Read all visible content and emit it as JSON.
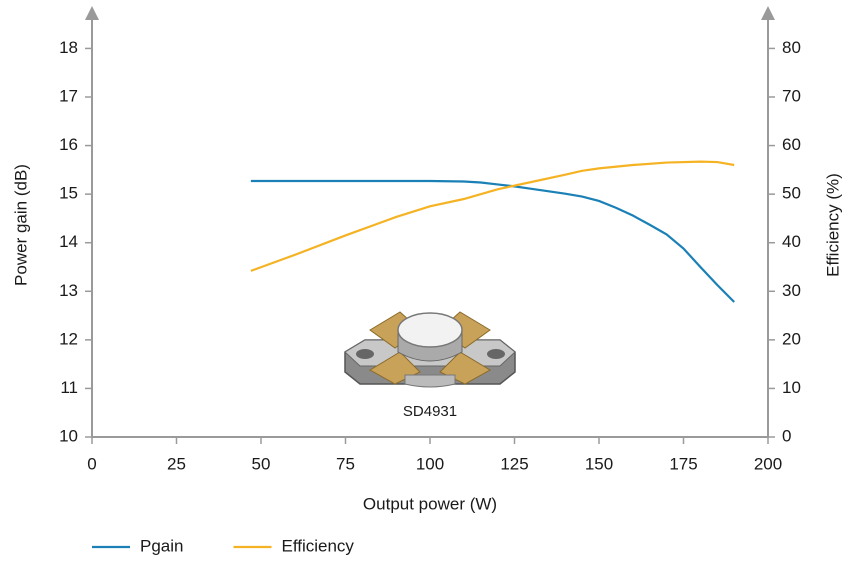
{
  "chart_data": {
    "type": "line",
    "x_label": "Output power (W)",
    "y_label": "Power gain (dB)",
    "y2_label": "Efficiency (%)",
    "image_label": "SD4931",
    "xlim": [
      0,
      200
    ],
    "xticks": [
      0,
      25,
      50,
      75,
      100,
      125,
      150,
      175,
      200
    ],
    "ylim": [
      10,
      18.75
    ],
    "yticks": [
      10,
      11,
      12,
      13,
      14,
      15,
      16,
      17,
      18
    ],
    "y2lim": [
      0,
      87.5
    ],
    "y2ticks": [
      0,
      10,
      20,
      30,
      40,
      50,
      60,
      70,
      80
    ],
    "legend": "bottom-left",
    "series": [
      {
        "name": "Pgain",
        "color": "#1a80b6",
        "x": [
          47,
          60,
          75,
          90,
          100,
          110,
          115,
          120,
          125,
          130,
          140,
          145,
          150,
          155,
          160,
          165,
          170,
          175,
          180,
          185,
          190
        ],
        "values": [
          15.27,
          15.27,
          15.27,
          15.27,
          15.27,
          15.26,
          15.24,
          15.2,
          15.16,
          15.11,
          15.01,
          14.95,
          14.86,
          14.72,
          14.56,
          14.37,
          14.17,
          13.88,
          13.5,
          13.13,
          12.78
        ]
      },
      {
        "name": "Efficiency",
        "color": "#f5b324",
        "axis": "y2",
        "x": [
          47,
          60,
          75,
          90,
          100,
          110,
          120,
          130,
          140,
          145,
          150,
          160,
          170,
          180,
          185,
          190
        ],
        "values": [
          34.2,
          37.5,
          41.5,
          45.3,
          47.5,
          49,
          51,
          52.5,
          54,
          54.8,
          55.3,
          56,
          56.5,
          56.7,
          56.6,
          56
        ]
      }
    ]
  }
}
